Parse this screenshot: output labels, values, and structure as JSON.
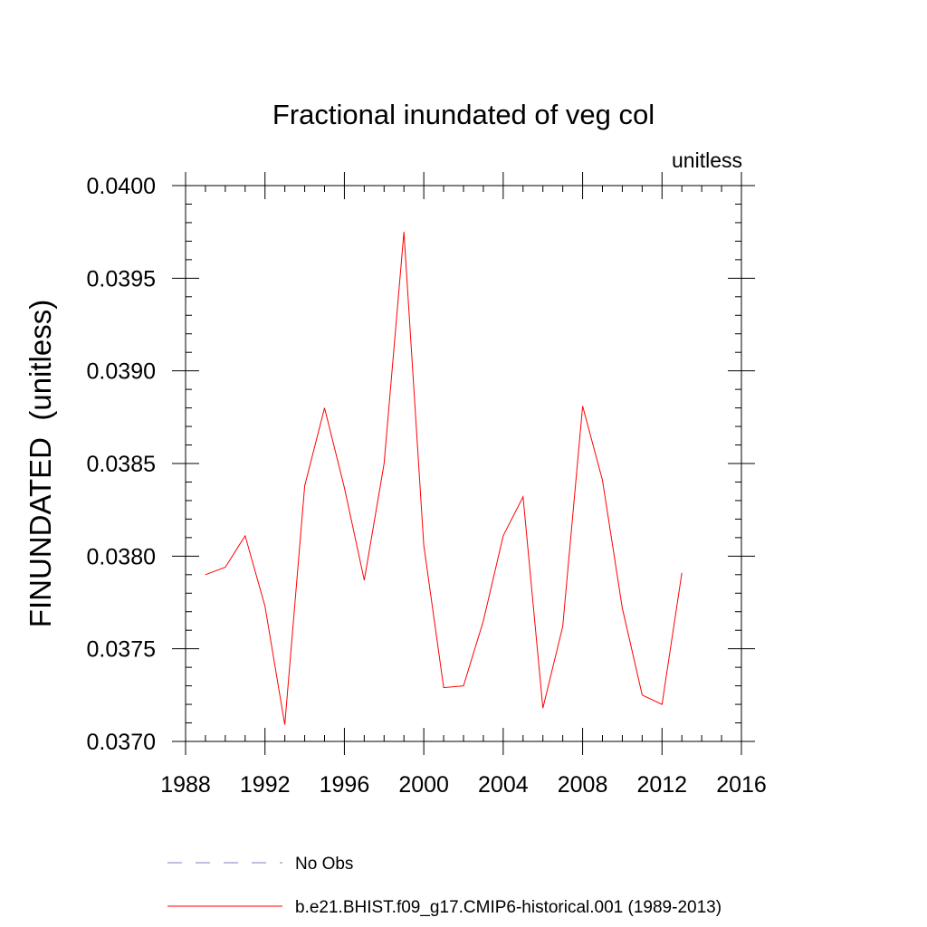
{
  "chart_data": {
    "type": "line",
    "title": "Fractional inundated of veg col",
    "units_label": "unitless",
    "ylabel": "FINUNDATED  (unitless)",
    "xlabel": "",
    "xlim": [
      1988,
      2016
    ],
    "ylim": [
      0.037,
      0.04
    ],
    "x_ticks": [
      1988,
      1992,
      1996,
      2000,
      2004,
      2008,
      2012,
      2016
    ],
    "x_tick_labels": [
      "1988",
      "1992",
      "1996",
      "2000",
      "2004",
      "2008",
      "2012",
      "2016"
    ],
    "y_ticks": [
      0.037,
      0.0375,
      0.038,
      0.0385,
      0.039,
      0.0395,
      0.04
    ],
    "y_tick_labels": [
      "0.0370",
      "0.0375",
      "0.0380",
      "0.0385",
      "0.0390",
      "0.0395",
      "0.0400"
    ],
    "grid": false,
    "legend_position": "bottom",
    "series": [
      {
        "name": "b.e21.BHIST.f09_g17.CMIP6-historical.001 (1989-2013)",
        "color": "#ff0000",
        "style": "solid",
        "x": [
          1989,
          1990,
          1991,
          1992,
          1993,
          1994,
          1995,
          1996,
          1997,
          1998,
          1999,
          2000,
          2001,
          2002,
          2003,
          2004,
          2005,
          2006,
          2007,
          2008,
          2009,
          2010,
          2011,
          2012,
          2013
        ],
        "y": [
          0.0379,
          0.03794,
          0.03811,
          0.03773,
          0.03709,
          0.03838,
          0.0388,
          0.03837,
          0.03787,
          0.0385,
          0.03975,
          0.03806,
          0.03729,
          0.0373,
          0.03765,
          0.03811,
          0.03832,
          0.03718,
          0.03762,
          0.03881,
          0.03841,
          0.03772,
          0.03725,
          0.0372,
          0.03791
        ]
      }
    ],
    "legend": [
      {
        "label": "No Obs",
        "color": "#7f7fc0",
        "style": "dashed"
      },
      {
        "label": "b.e21.BHIST.f09_g17.CMIP6-historical.001 (1989-2013)",
        "color": "#ff0000",
        "style": "solid"
      }
    ]
  }
}
